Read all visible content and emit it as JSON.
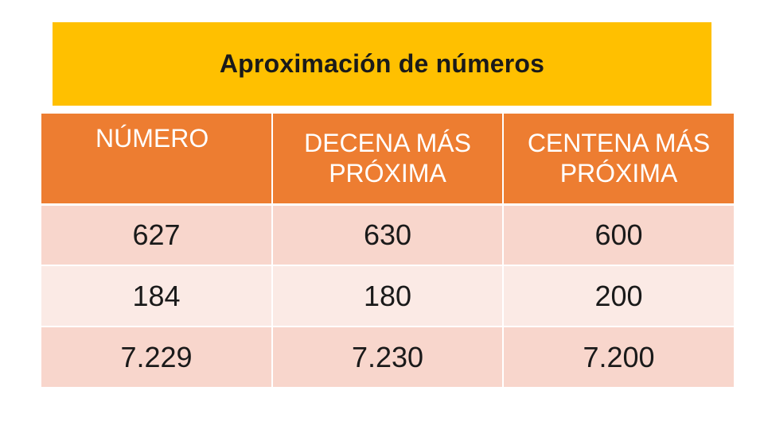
{
  "title": "Aproximación de números",
  "colors": {
    "title_background": "#ffc000",
    "header_background": "#ed7d31",
    "row_odd_background": "#f8d6cc",
    "row_even_background": "#fbeae5"
  },
  "table": {
    "headers": [
      "NÚMERO",
      "DECENA MÁS PRÓXIMA",
      "CENTENA MÁS PRÓXIMA"
    ],
    "rows": [
      [
        "627",
        "630",
        "600"
      ],
      [
        "184",
        "180",
        "200"
      ],
      [
        "7.229",
        "7.230",
        "7.200"
      ]
    ]
  }
}
